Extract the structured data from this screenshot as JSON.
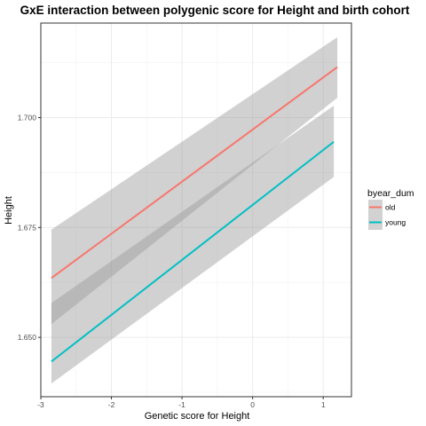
{
  "chart_data": {
    "type": "line",
    "title": "GxE interaction between polygenic score for Height and birth cohort",
    "xlabel": "Genetic score for Height",
    "ylabel": "Height",
    "xlim": [
      -3.0,
      1.4
    ],
    "ylim": [
      1.6365,
      1.7215
    ],
    "x_ticks": [
      -3,
      -2,
      -1,
      0,
      1
    ],
    "x_tick_labels": [
      "-3",
      "-2",
      "-1",
      "0",
      "1"
    ],
    "y_ticks": [
      1.65,
      1.675,
      1.7
    ],
    "y_tick_labels": [
      "1.650",
      "1.675",
      "1.700"
    ],
    "grid": true,
    "legend": {
      "title": "byear_dum",
      "position": "right"
    },
    "colors": {
      "old": "#F8766D",
      "young": "#00BFC4",
      "ribbon": "#999999",
      "grid": "#ebebeb"
    },
    "series": [
      {
        "name": "old",
        "x": [
          -2.85,
          1.2
        ],
        "y": [
          1.6635,
          1.7115
        ],
        "lower": [
          1.653,
          1.7045
        ],
        "upper": [
          1.6745,
          1.7183
        ]
      },
      {
        "name": "young",
        "x": [
          -2.85,
          1.15
        ],
        "y": [
          1.6445,
          1.6945
        ],
        "lower": [
          1.6395,
          1.6865
        ],
        "upper": [
          1.6578,
          1.7027
        ]
      }
    ]
  }
}
